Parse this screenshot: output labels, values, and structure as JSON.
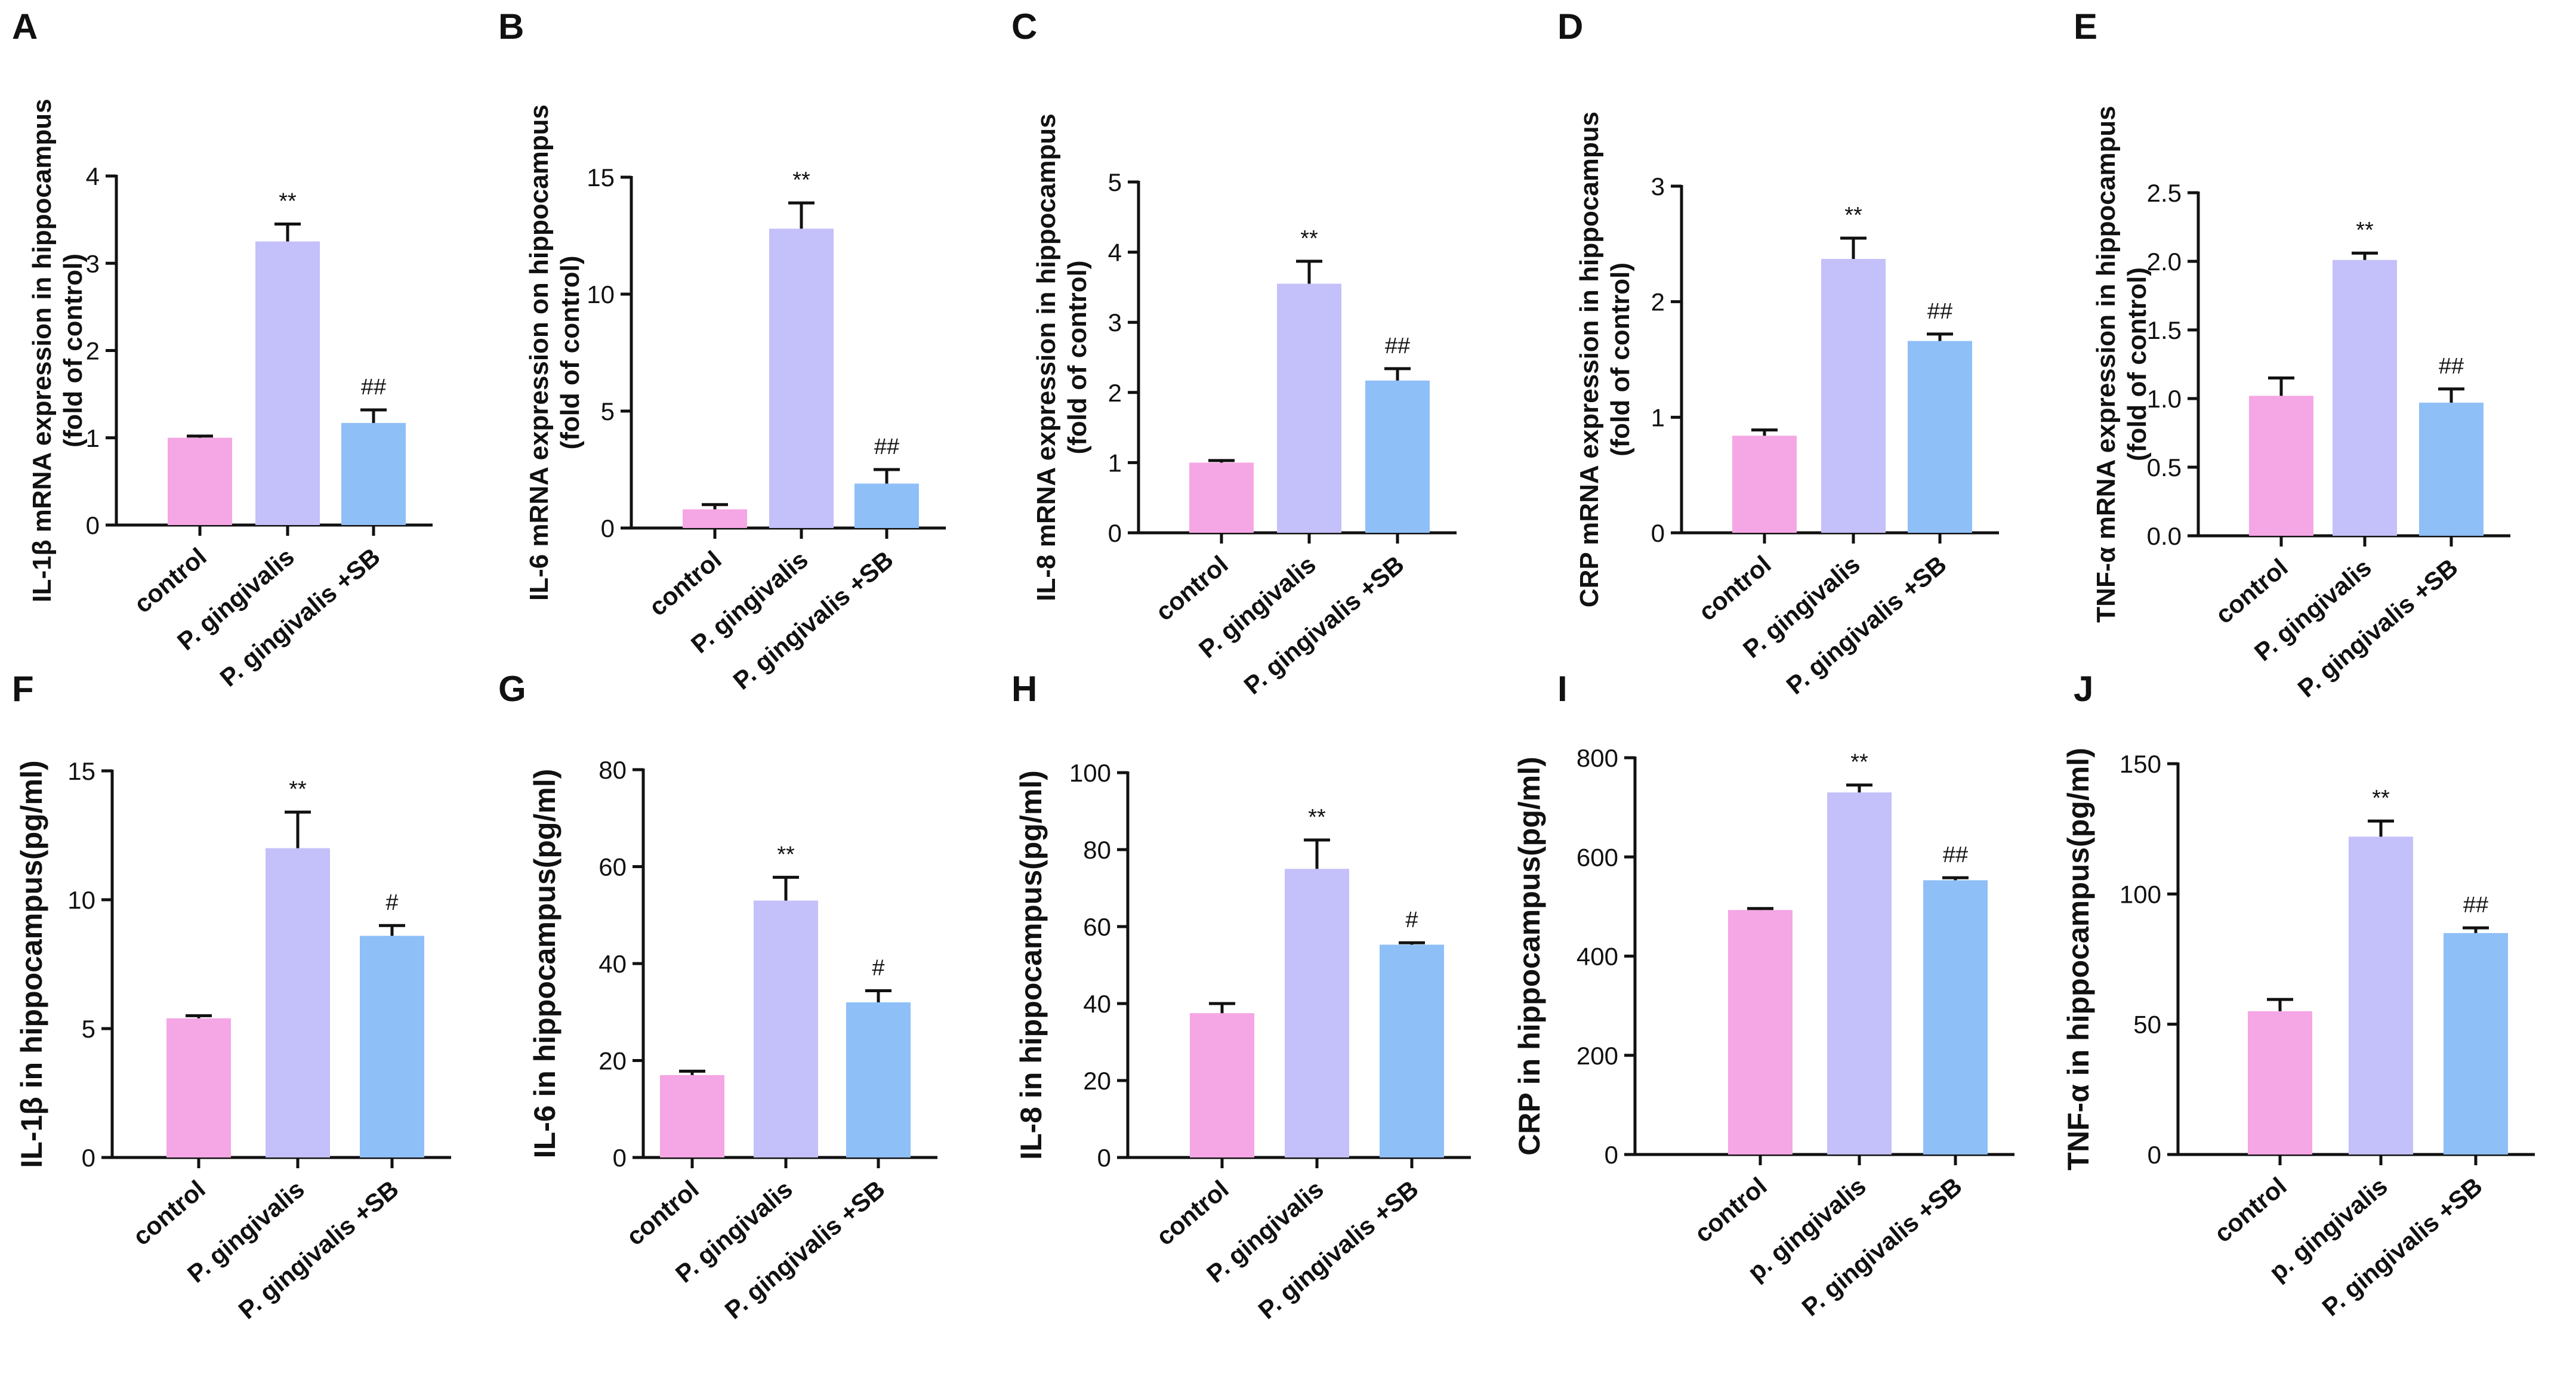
{
  "colors": {
    "control": "#f5a6e4",
    "pg": "#c4c0fa",
    "pgsb": "#8fbff7",
    "axis": "#111111"
  },
  "chart_data": [
    {
      "panel": "A",
      "type": "bar",
      "ylabel_line1": "IL-1β mRNA expression in hippocampus",
      "ylabel_line2": "(fold of control)",
      "categories": [
        "control",
        "P. gingivalis",
        "P. gingivalis +SB"
      ],
      "values": [
        1.0,
        3.25,
        1.17
      ],
      "errors": [
        0.02,
        0.2,
        0.15
      ],
      "annotations": [
        "",
        "**",
        "##"
      ],
      "ylim": [
        0,
        4
      ],
      "yticks": [
        "0",
        "1",
        "2",
        "3",
        "4"
      ]
    },
    {
      "panel": "B",
      "type": "bar",
      "ylabel_line1": "IL-6 mRNA expression on hippocampus",
      "ylabel_line2": "(fold of control)",
      "categories": [
        "control",
        "P. gingivalis",
        "P. gingivalis +SB"
      ],
      "values": [
        0.8,
        12.8,
        1.9
      ],
      "errors": [
        0.2,
        1.1,
        0.6
      ],
      "annotations": [
        "",
        "**",
        "##"
      ],
      "ylim": [
        0,
        15
      ],
      "yticks": [
        "0",
        "5",
        "10",
        "15"
      ]
    },
    {
      "panel": "C",
      "type": "bar",
      "ylabel_line1": "IL-8 mRNA expression in hippocampus",
      "ylabel_line2": "(fold of control)",
      "categories": [
        "control",
        "P. gingivalis",
        "P. gingivalis +SB"
      ],
      "values": [
        1.0,
        3.55,
        2.17
      ],
      "errors": [
        0.03,
        0.32,
        0.17
      ],
      "annotations": [
        "",
        "**",
        "##"
      ],
      "ylim": [
        0,
        5
      ],
      "yticks": [
        "0",
        "1",
        "2",
        "3",
        "4",
        "5"
      ]
    },
    {
      "panel": "D",
      "type": "bar",
      "ylabel_line1": "CRP mRNA expression in hippocampus",
      "ylabel_line2": "(fold of control)",
      "categories": [
        "control",
        "P. gingivalis",
        "P. gingivalis +SB"
      ],
      "values": [
        0.84,
        2.37,
        1.66
      ],
      "errors": [
        0.05,
        0.18,
        0.06
      ],
      "annotations": [
        "",
        "**",
        "##"
      ],
      "ylim": [
        0,
        3
      ],
      "yticks": [
        "0",
        "1",
        "2",
        "3"
      ]
    },
    {
      "panel": "E",
      "type": "bar",
      "ylabel_line1": "TNF-α mRNA expression in hippocampus",
      "ylabel_line2": "(fold of control)",
      "categories": [
        "control",
        "P. gingivalis",
        "P. gingivalis +SB"
      ],
      "values": [
        1.02,
        2.01,
        0.97
      ],
      "errors": [
        0.13,
        0.05,
        0.1
      ],
      "annotations": [
        "",
        "**",
        "##"
      ],
      "ylim": [
        0,
        2.5
      ],
      "yticks": [
        "0.0",
        "0.5",
        "1.0",
        "1.5",
        "2.0",
        "2.5"
      ]
    },
    {
      "panel": "F",
      "type": "bar",
      "ylabel_line1": "IL-1β in hippocampus(pg/ml)",
      "ylabel_line2": "",
      "categories": [
        "control",
        "P. gingivalis",
        "P. gingivalis +SB"
      ],
      "values": [
        5.4,
        12.0,
        8.6
      ],
      "errors": [
        0.1,
        1.4,
        0.4
      ],
      "annotations": [
        "",
        "**",
        "#"
      ],
      "ylim": [
        0,
        15
      ],
      "yticks": [
        "0",
        "5",
        "10",
        "15"
      ]
    },
    {
      "panel": "G",
      "type": "bar",
      "ylabel_line1": "IL-6 in hippocampus(pg/ml)",
      "ylabel_line2": "",
      "categories": [
        "control",
        "P. gingivalis",
        "P. gingivalis +SB"
      ],
      "values": [
        17,
        53,
        32
      ],
      "errors": [
        0.8,
        4.8,
        2.4
      ],
      "annotations": [
        "",
        "**",
        "#"
      ],
      "ylim": [
        0,
        80
      ],
      "yticks": [
        "0",
        "20",
        "40",
        "60",
        "80"
      ]
    },
    {
      "panel": "H",
      "type": "bar",
      "ylabel_line1": "IL-8 in hippocampus(pg/ml)",
      "ylabel_line2": "",
      "categories": [
        "control",
        "P. gingivalis",
        "P. gingivalis +SB"
      ],
      "values": [
        37.5,
        75,
        55.3
      ],
      "errors": [
        2.5,
        7.5,
        0.5
      ],
      "annotations": [
        "",
        "**",
        "#"
      ],
      "ylim": [
        0,
        100
      ],
      "yticks": [
        "0",
        "20",
        "40",
        "60",
        "80",
        "100"
      ]
    },
    {
      "panel": "I",
      "type": "bar",
      "ylabel_line1": "CRP in hippocampus(pg/ml)",
      "ylabel_line2": "",
      "categories": [
        "control",
        "p. gingivalis",
        "P. gingivalis +SB"
      ],
      "values": [
        493,
        730,
        553
      ],
      "errors": [
        3,
        15,
        5
      ],
      "annotations": [
        "",
        "**",
        "##"
      ],
      "ylim": [
        0,
        800
      ],
      "yticks": [
        "0",
        "200",
        "400",
        "600",
        "800"
      ]
    },
    {
      "panel": "J",
      "type": "bar",
      "ylabel_line1": "TNF-α in hippocampus(pg/ml)",
      "ylabel_line2": "",
      "categories": [
        "control",
        "p. gingivalis",
        "P. gingivalis +SB"
      ],
      "values": [
        55,
        122,
        85
      ],
      "errors": [
        4.5,
        6,
        2
      ],
      "annotations": [
        "",
        "**",
        "##"
      ],
      "ylim": [
        0,
        150
      ],
      "yticks": [
        "0",
        "50",
        "100",
        "150"
      ]
    }
  ]
}
